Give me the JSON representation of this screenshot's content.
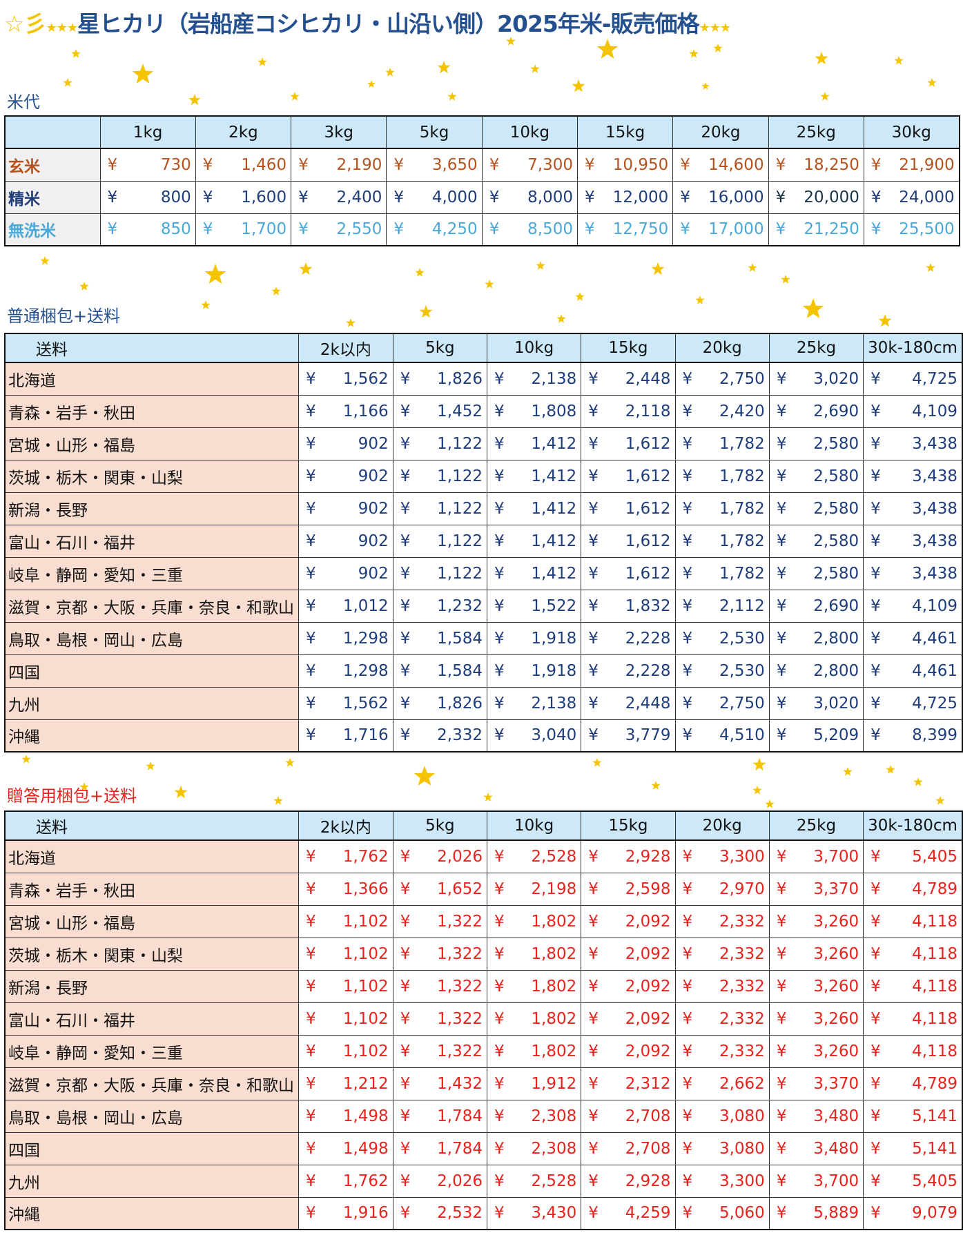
{
  "title": {
    "prefix": "☆彡",
    "stars": "★★★",
    "text": "星ヒカリ（岩船産コシヒカリ・山沿い側）2025年米-販売価格",
    "suffix": "★★★"
  },
  "colors": {
    "title": "#24508f",
    "header_bg": "#cde9f9",
    "brown": "#b5521e",
    "navy": "#1f3d7a",
    "sky": "#4aa8d8",
    "red": "#e8231e",
    "region_bg": "#f8ddd0",
    "star": "#f5c400"
  },
  "rice": {
    "label": "米代",
    "currency": "¥",
    "headers": [
      "",
      "1kg",
      "2kg",
      "3kg",
      "5kg",
      "10kg",
      "15kg",
      "20kg",
      "25kg",
      "30kg"
    ],
    "rows": [
      {
        "name": "玄米",
        "color": "brown",
        "values": [
          "730",
          "1,460",
          "2,190",
          "3,650",
          "7,300",
          "10,950",
          "14,600",
          "18,250",
          "21,900"
        ]
      },
      {
        "name": "精米",
        "color": "navy",
        "values": [
          "800",
          "1,600",
          "2,400",
          "4,000",
          "8,000",
          "12,000",
          "16,000",
          "20,000",
          "24,000"
        ]
      },
      {
        "name": "無洗米",
        "color": "sky",
        "values": [
          "850",
          "1,700",
          "2,550",
          "4,250",
          "8,500",
          "12,750",
          "17,000",
          "21,250",
          "25,500"
        ]
      }
    ]
  },
  "normal": {
    "label": "普通梱包+送料",
    "currency": "¥",
    "headers": [
      "送料",
      "2k以内",
      "5kg",
      "10kg",
      "15kg",
      "20kg",
      "25kg",
      "30k-180cm"
    ],
    "rows": [
      {
        "name": "北海道",
        "values": [
          "1,562",
          "1,826",
          "2,138",
          "2,448",
          "2,750",
          "3,020",
          "4,725"
        ]
      },
      {
        "name": "青森・岩手・秋田",
        "values": [
          "1,166",
          "1,452",
          "1,808",
          "2,118",
          "2,420",
          "2,690",
          "4,109"
        ]
      },
      {
        "name": "宮城・山形・福島",
        "values": [
          "902",
          "1,122",
          "1,412",
          "1,612",
          "1,782",
          "2,580",
          "3,438"
        ]
      },
      {
        "name": "茨城・栃木・関東・山梨",
        "values": [
          "902",
          "1,122",
          "1,412",
          "1,612",
          "1,782",
          "2,580",
          "3,438"
        ]
      },
      {
        "name": "新潟・長野",
        "values": [
          "902",
          "1,122",
          "1,412",
          "1,612",
          "1,782",
          "2,580",
          "3,438"
        ]
      },
      {
        "name": "富山・石川・福井",
        "values": [
          "902",
          "1,122",
          "1,412",
          "1,612",
          "1,782",
          "2,580",
          "3,438"
        ]
      },
      {
        "name": "岐阜・静岡・愛知・三重",
        "values": [
          "902",
          "1,122",
          "1,412",
          "1,612",
          "1,782",
          "2,580",
          "3,438"
        ]
      },
      {
        "name": "滋賀・京都・大阪・兵庫・奈良・和歌山",
        "values": [
          "1,012",
          "1,232",
          "1,522",
          "1,832",
          "2,112",
          "2,690",
          "4,109"
        ]
      },
      {
        "name": "鳥取・島根・岡山・広島",
        "values": [
          "1,298",
          "1,584",
          "1,918",
          "2,228",
          "2,530",
          "2,800",
          "4,461"
        ]
      },
      {
        "name": "四国",
        "values": [
          "1,298",
          "1,584",
          "1,918",
          "2,228",
          "2,530",
          "2,800",
          "4,461"
        ]
      },
      {
        "name": "九州",
        "values": [
          "1,562",
          "1,826",
          "2,138",
          "2,448",
          "2,750",
          "3,020",
          "4,725"
        ]
      },
      {
        "name": "沖縄",
        "values": [
          "1,716",
          "2,332",
          "3,040",
          "3,779",
          "4,510",
          "5,209",
          "8,399"
        ]
      }
    ]
  },
  "gift": {
    "label": "贈答用梱包+送料",
    "currency": "¥",
    "headers": [
      "送料",
      "2k以内",
      "5kg",
      "10kg",
      "15kg",
      "20kg",
      "25kg",
      "30k-180cm"
    ],
    "rows": [
      {
        "name": "北海道",
        "values": [
          "1,762",
          "2,026",
          "2,528",
          "2,928",
          "3,300",
          "3,700",
          "5,405"
        ]
      },
      {
        "name": "青森・岩手・秋田",
        "values": [
          "1,366",
          "1,652",
          "2,198",
          "2,598",
          "2,970",
          "3,370",
          "4,789"
        ]
      },
      {
        "name": "宮城・山形・福島",
        "values": [
          "1,102",
          "1,322",
          "1,802",
          "2,092",
          "2,332",
          "3,260",
          "4,118"
        ]
      },
      {
        "name": "茨城・栃木・関東・山梨",
        "values": [
          "1,102",
          "1,322",
          "1,802",
          "2,092",
          "2,332",
          "3,260",
          "4,118"
        ]
      },
      {
        "name": "新潟・長野",
        "values": [
          "1,102",
          "1,322",
          "1,802",
          "2,092",
          "2,332",
          "3,260",
          "4,118"
        ]
      },
      {
        "name": "富山・石川・福井",
        "values": [
          "1,102",
          "1,322",
          "1,802",
          "2,092",
          "2,332",
          "3,260",
          "4,118"
        ]
      },
      {
        "name": "岐阜・静岡・愛知・三重",
        "values": [
          "1,102",
          "1,322",
          "1,802",
          "2,092",
          "2,332",
          "3,260",
          "4,118"
        ]
      },
      {
        "name": "滋賀・京都・大阪・兵庫・奈良・和歌山",
        "values": [
          "1,212",
          "1,432",
          "1,912",
          "2,312",
          "2,662",
          "3,370",
          "4,789"
        ]
      },
      {
        "name": "鳥取・島根・岡山・広島",
        "values": [
          "1,498",
          "1,784",
          "2,308",
          "2,708",
          "3,080",
          "3,480",
          "5,141"
        ]
      },
      {
        "name": "四国",
        "values": [
          "1,498",
          "1,784",
          "2,308",
          "2,708",
          "3,080",
          "3,480",
          "5,141"
        ]
      },
      {
        "name": "九州",
        "values": [
          "1,762",
          "2,026",
          "2,528",
          "2,928",
          "3,300",
          "3,700",
          "5,405"
        ]
      },
      {
        "name": "沖縄",
        "values": [
          "1,916",
          "2,532",
          "3,430",
          "4,259",
          "5,060",
          "5,889",
          "9,079"
        ]
      }
    ]
  }
}
